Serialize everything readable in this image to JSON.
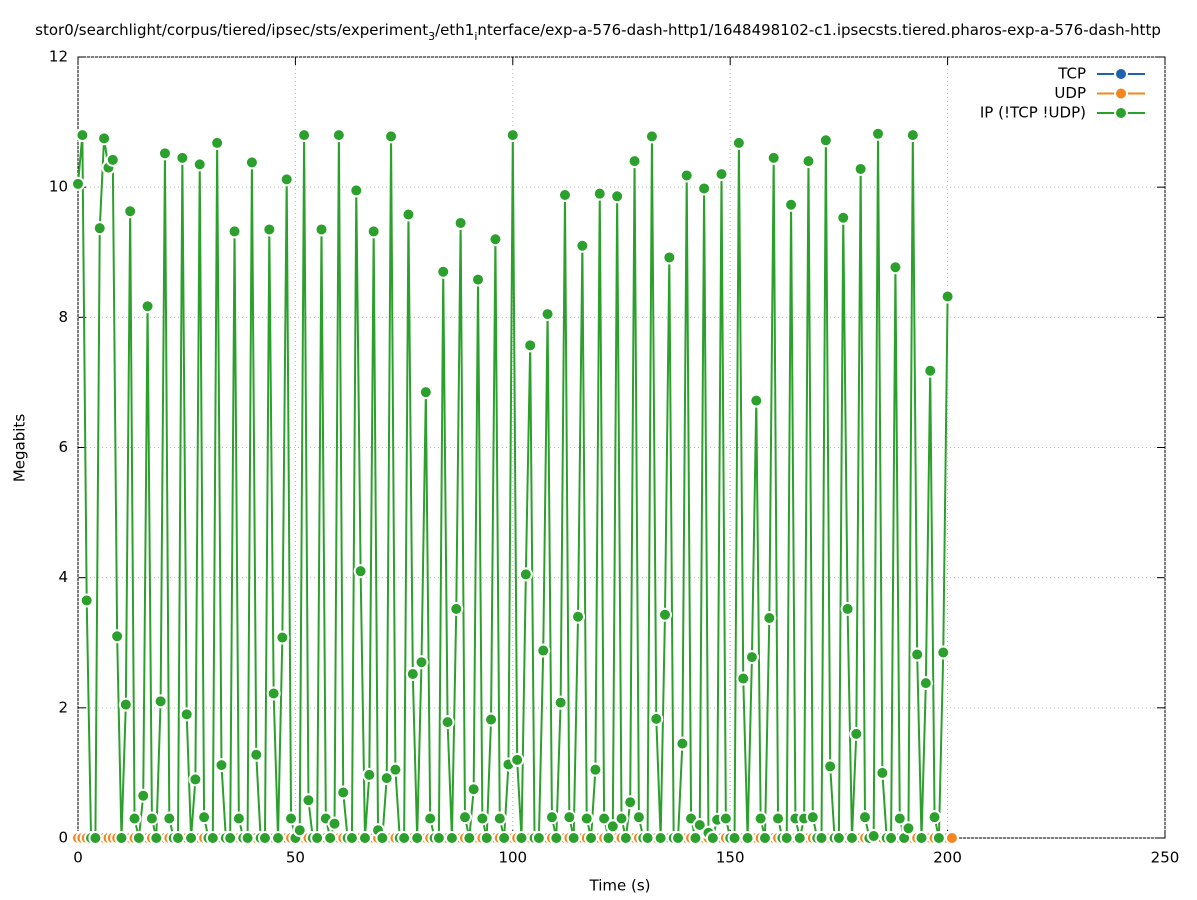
{
  "chart_data": {
    "type": "line",
    "title": [
      "stor0/searchlight/corpus/tiered/ipsec/sts/experiment",
      "3",
      "/eth1",
      "i",
      "nterface/exp-a-576-dash-http1/1648498102-c1.ipsecsts.tiered.pharos-exp-a-576-dash-http"
    ],
    "xlabel": "Time (s)",
    "ylabel": "Megabits",
    "xlim": [
      0,
      250
    ],
    "xticks": [
      0,
      50,
      100,
      150,
      200,
      250
    ],
    "ylim": [
      0,
      12
    ],
    "yticks": [
      0,
      2,
      4,
      6,
      8,
      10,
      12
    ],
    "grid": true,
    "legend": "top-right",
    "x": [
      0,
      1,
      2,
      3,
      4,
      5,
      6,
      7,
      8,
      9,
      10,
      11,
      12,
      13,
      14,
      15,
      16,
      17,
      18,
      19,
      20,
      21,
      22,
      23,
      24,
      25,
      26,
      27,
      28,
      29,
      30,
      31,
      32,
      33,
      34,
      35,
      36,
      37,
      38,
      39,
      40,
      41,
      42,
      43,
      44,
      45,
      46,
      47,
      48,
      49,
      50,
      51,
      52,
      53,
      54,
      55,
      56,
      57,
      58,
      59,
      60,
      61,
      62,
      63,
      64,
      65,
      66,
      67,
      68,
      69,
      70,
      71,
      72,
      73,
      74,
      75,
      76,
      77,
      78,
      79,
      80,
      81,
      82,
      83,
      84,
      85,
      86,
      87,
      88,
      89,
      90,
      91,
      92,
      93,
      94,
      95,
      96,
      97,
      98,
      99,
      100,
      101,
      102,
      103,
      104,
      105,
      106,
      107,
      108,
      109,
      110,
      111,
      112,
      113,
      114,
      115,
      116,
      117,
      118,
      119,
      120,
      121,
      122,
      123,
      124,
      125,
      126,
      127,
      128,
      129,
      130,
      131,
      132,
      133,
      134,
      135,
      136,
      137,
      138,
      139,
      140,
      141,
      142,
      143,
      144,
      145,
      146,
      147,
      148,
      149,
      150,
      151,
      152,
      153,
      154,
      155,
      156,
      157,
      158,
      159,
      160,
      161,
      162,
      163,
      164,
      165,
      166,
      167,
      168,
      169,
      170,
      171,
      172,
      173,
      174,
      175,
      176,
      177,
      178,
      179,
      180,
      181,
      182,
      183,
      184,
      185,
      186,
      187,
      188,
      189,
      190,
      191,
      192,
      193,
      194,
      195,
      196,
      197,
      198,
      199,
      200,
      201
    ],
    "series": [
      {
        "name": "TCP",
        "color": "#1f62ad",
        "values": [
          0,
          0,
          0,
          0,
          0,
          0,
          0,
          0,
          0,
          0,
          0,
          0,
          0,
          0,
          0,
          0,
          0,
          0,
          0,
          0,
          0,
          0,
          0,
          0,
          0,
          0,
          0,
          0,
          0,
          0,
          0,
          0,
          0,
          0,
          0,
          0,
          0,
          0,
          0,
          0,
          0,
          0,
          0,
          0,
          0,
          0,
          0,
          0,
          0,
          0,
          0,
          0,
          0,
          0,
          0,
          0,
          0,
          0,
          0,
          0,
          0,
          0,
          0,
          0,
          0,
          0,
          0,
          0,
          0,
          0,
          0,
          0,
          0,
          0,
          0,
          0,
          0,
          0,
          0,
          0,
          0,
          0,
          0,
          0,
          0,
          0,
          0,
          0,
          0,
          0,
          0,
          0,
          0,
          0,
          0,
          0,
          0,
          0,
          0,
          0,
          0,
          0,
          0,
          0,
          0,
          0,
          0,
          0,
          0,
          0,
          0,
          0,
          0,
          0,
          0,
          0,
          0,
          0,
          0,
          0,
          0,
          0,
          0,
          0,
          0,
          0,
          0,
          0,
          0,
          0,
          0,
          0,
          0,
          0,
          0,
          0,
          0,
          0,
          0,
          0,
          0,
          0,
          0,
          0,
          0,
          0,
          0,
          0,
          0,
          0,
          0,
          0,
          0,
          0,
          0,
          0,
          0,
          0,
          0,
          0,
          0,
          0,
          0,
          0,
          0,
          0,
          0,
          0,
          0,
          0,
          0,
          0,
          0,
          0,
          0,
          0,
          0,
          0,
          0,
          0,
          0,
          0,
          0,
          0,
          0,
          0,
          0,
          0,
          0,
          0,
          0,
          0,
          0,
          0,
          0,
          0,
          0,
          0,
          0,
          0,
          0,
          0
        ]
      },
      {
        "name": "UDP",
        "color": "#f5851f",
        "values": [
          0,
          0,
          0,
          0,
          0,
          0,
          0,
          0,
          0,
          0,
          0,
          0,
          0,
          0,
          0,
          0,
          0,
          0,
          0,
          0,
          0,
          0,
          0,
          0,
          0,
          0,
          0,
          0,
          0,
          0,
          0,
          0,
          0,
          0,
          0,
          0,
          0,
          0,
          0,
          0,
          0,
          0,
          0,
          0,
          0,
          0,
          0,
          0,
          0,
          0,
          0,
          0,
          0,
          0,
          0,
          0,
          0,
          0,
          0,
          0,
          0,
          0,
          0,
          0,
          0,
          0,
          0,
          0,
          0,
          0,
          0,
          0,
          0,
          0,
          0,
          0,
          0,
          0,
          0,
          0,
          0,
          0,
          0,
          0,
          0,
          0,
          0,
          0,
          0,
          0,
          0,
          0,
          0,
          0,
          0,
          0,
          0,
          0,
          0,
          0,
          0,
          0,
          0,
          0,
          0,
          0,
          0,
          0,
          0,
          0,
          0,
          0,
          0,
          0,
          0,
          0,
          0,
          0,
          0,
          0,
          0,
          0,
          0,
          0,
          0,
          0,
          0,
          0,
          0,
          0,
          0,
          0,
          0,
          0,
          0,
          0,
          0,
          0,
          0,
          0,
          0,
          0,
          0,
          0,
          0,
          0,
          0,
          0,
          0,
          0,
          0,
          0,
          0,
          0,
          0,
          0,
          0,
          0,
          0,
          0,
          0,
          0,
          0,
          0,
          0,
          0,
          0,
          0,
          0,
          0,
          0,
          0,
          0,
          0,
          0,
          0,
          0,
          0,
          0,
          0,
          0,
          0,
          0,
          0,
          0,
          0,
          0,
          0,
          0,
          0,
          0,
          0,
          0,
          0,
          0,
          0,
          0,
          0,
          0,
          0,
          0,
          0
        ]
      },
      {
        "name": "IP (!TCP  !UDP)",
        "color": "#2ca02c",
        "values": [
          10.05,
          10.8,
          3.65,
          0,
          0,
          9.37,
          10.75,
          10.3,
          10.42,
          3.1,
          0,
          2.05,
          9.63,
          0.3,
          0,
          0.65,
          8.17,
          0.3,
          0,
          2.1,
          10.52,
          0.3,
          0,
          0,
          10.45,
          1.9,
          0,
          0.9,
          10.35,
          0.32,
          0,
          0,
          10.68,
          1.12,
          0,
          0,
          9.32,
          0.3,
          0,
          0,
          10.38,
          1.28,
          0,
          0,
          9.35,
          2.22,
          0,
          3.08,
          10.12,
          0.3,
          0,
          0.12,
          10.8,
          0.58,
          0,
          0,
          9.35,
          0.3,
          0,
          0.22,
          10.8,
          0.7,
          0,
          0,
          9.95,
          4.1,
          0,
          0.97,
          9.32,
          0.12,
          0,
          0.92,
          10.78,
          1.05,
          0,
          0,
          9.58,
          2.52,
          0,
          2.7,
          6.85,
          0.3,
          0,
          0,
          8.7,
          1.78,
          0,
          3.52,
          9.45,
          0.32,
          0,
          0.75,
          8.58,
          0.3,
          0,
          1.82,
          9.2,
          0.3,
          0,
          1.13,
          10.8,
          1.2,
          0,
          4.05,
          7.57,
          0,
          0,
          2.88,
          8.05,
          0.32,
          0,
          2.08,
          9.88,
          0.32,
          0,
          3.4,
          9.1,
          0.3,
          0,
          1.05,
          9.9,
          0.3,
          0,
          0.18,
          9.86,
          0.3,
          0,
          0.55,
          10.4,
          0.32,
          0,
          0,
          10.78,
          1.83,
          0,
          3.43,
          8.92,
          0,
          0,
          1.45,
          10.18,
          0.3,
          0,
          0.2,
          9.98,
          0.08,
          0,
          0.28,
          10.2,
          0.3,
          0,
          0,
          10.68,
          2.45,
          0,
          2.78,
          6.72,
          0.3,
          0,
          3.38,
          10.45,
          0.3,
          0,
          0,
          9.73,
          0.3,
          0,
          0.3,
          10.4,
          0.32,
          0,
          0,
          10.72,
          1.1,
          0,
          0,
          9.53,
          3.52,
          0,
          1.6,
          10.28,
          0.32,
          0,
          0.03,
          10.82,
          1.0,
          0,
          0,
          8.77,
          0.3,
          0,
          0.15,
          10.8,
          2.82,
          0,
          2.38,
          7.18,
          0.32,
          0,
          2.85,
          8.32,
          null
        ]
      }
    ]
  }
}
